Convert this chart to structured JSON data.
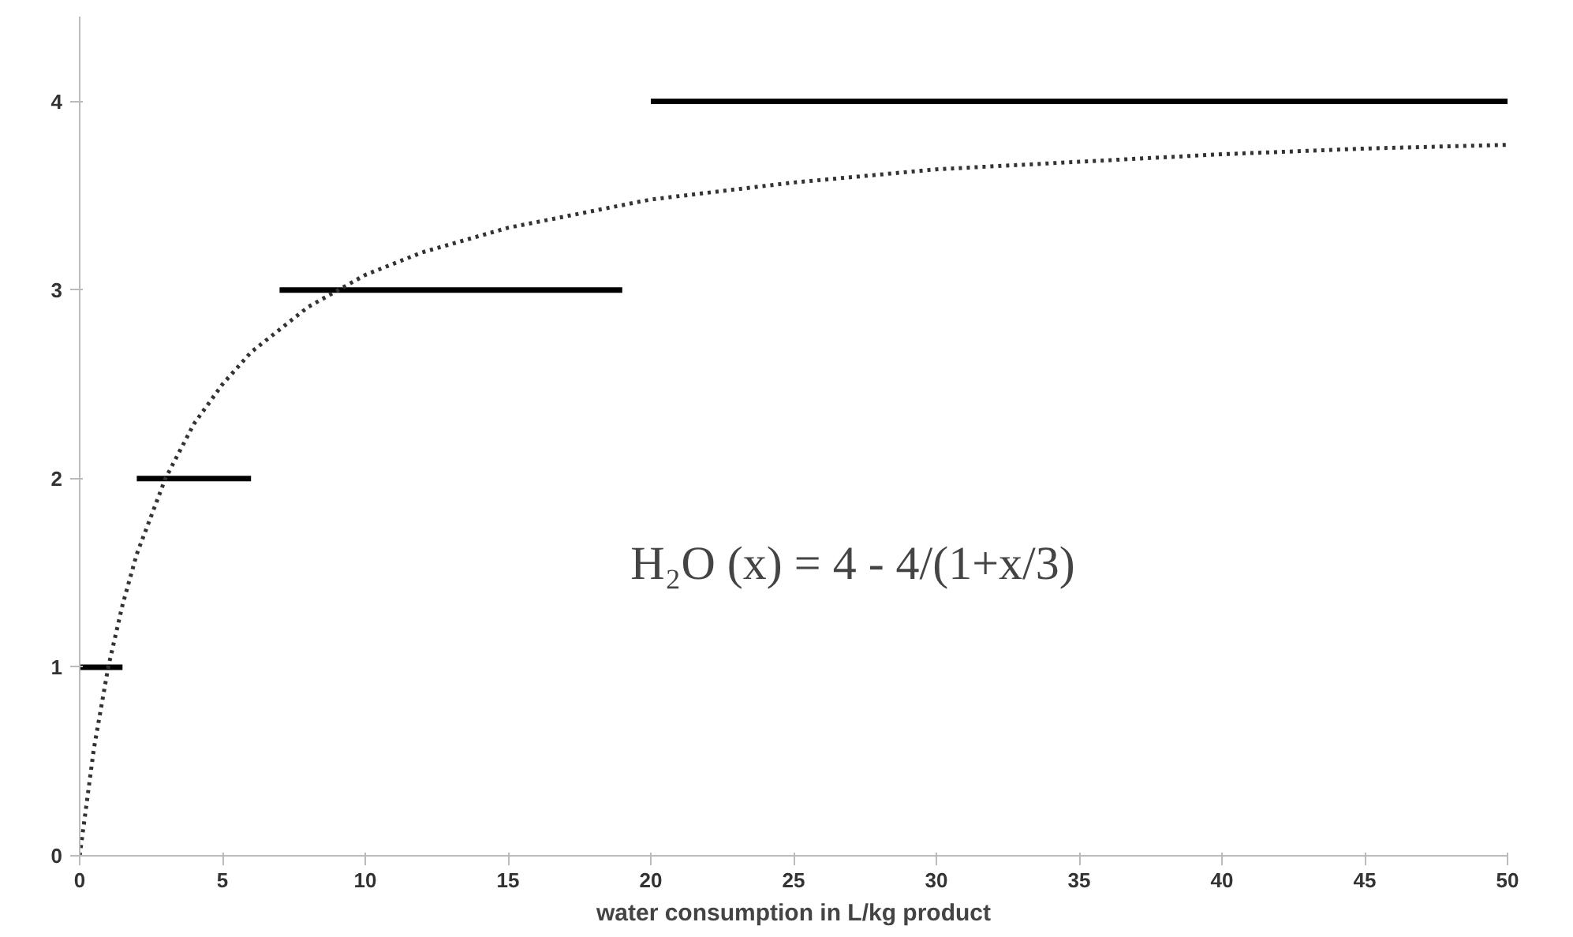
{
  "chart_data": {
    "type": "line",
    "xlabel": "water consumption in L/kg product",
    "xlim": [
      0,
      50
    ],
    "ylim": [
      0,
      4.45
    ],
    "xticks": [
      0,
      5,
      10,
      15,
      20,
      25,
      30,
      35,
      40,
      45,
      50
    ],
    "yticks": [
      0,
      1,
      2,
      3,
      4
    ],
    "grid": false,
    "marker": "none",
    "series": [
      {
        "color": "#000000",
        "x": [
          0,
          1.5
        ],
        "values": [
          1,
          1
        ],
        "line_style": "solid"
      },
      {
        "color": "#000000",
        "x": [
          2,
          6
        ],
        "values": [
          2,
          2
        ],
        "line_style": "solid"
      },
      {
        "color": "#000000",
        "x": [
          7,
          19
        ],
        "values": [
          3,
          3
        ],
        "line_style": "solid"
      },
      {
        "color": "#000000",
        "x": [
          20,
          50
        ],
        "values": [
          4,
          4
        ],
        "line_style": "solid"
      },
      {
        "color": "#333333",
        "x": [
          0,
          0.5,
          1,
          1.5,
          2,
          3,
          4,
          5,
          6,
          8,
          10,
          12,
          15,
          20,
          25,
          30,
          35,
          40,
          45,
          50
        ],
        "values": [
          0,
          0.57,
          1,
          1.33,
          1.6,
          2,
          2.29,
          2.5,
          2.67,
          2.91,
          3.08,
          3.2,
          3.33,
          3.48,
          3.57,
          3.64,
          3.68,
          3.72,
          3.75,
          3.77
        ],
        "line_style": "dotted"
      }
    ],
    "annotations": [
      "H₂O (x) = 4 - 4/(1+x/3)"
    ]
  }
}
